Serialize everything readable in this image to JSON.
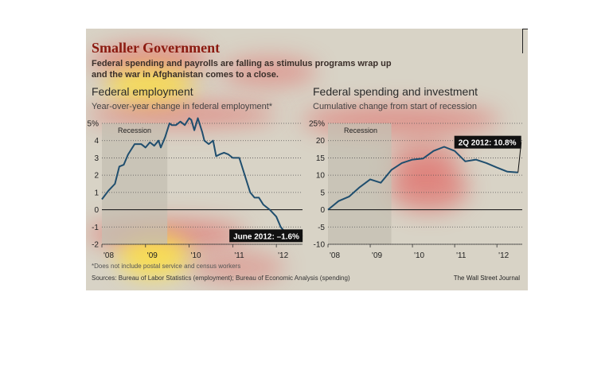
{
  "header": {
    "title": "Smaller Government",
    "subtitle": "Federal spending and payrolls are falling as stimulus programs wrap up and the war in Afghanistan comes to a close."
  },
  "footer": {
    "footnote": "*Does not include postal service and census workers",
    "sources": "Sources: Bureau of Labor Statistics (employment); Bureau of Economic Analysis (spending)",
    "credit": "The Wall Street Journal"
  },
  "colors": {
    "line": "#1f4e6e",
    "recession": "#c4bfb2",
    "background": "#d8d3c6",
    "title": "#8b1a10"
  },
  "chart_data": [
    {
      "type": "line",
      "title": "Federal employment",
      "subtitle": "Year-over-year change in federal employment*",
      "x_tick_labels": [
        "'08",
        "'09",
        "'10",
        "'11",
        "'12"
      ],
      "y_tick_labels": [
        "5%",
        "4",
        "3",
        "2",
        "1",
        "0",
        "-1",
        "-2"
      ],
      "ylim": [
        -2,
        5
      ],
      "xlim": [
        2008.0,
        2012.6
      ],
      "recession_label": "Recession",
      "recession": [
        2008.0,
        2009.5
      ],
      "annotation": "June 2012: –1.6%",
      "series": [
        {
          "x": [
            2008.0,
            2008.15,
            2008.3,
            2008.4,
            2008.5,
            2008.6,
            2008.75,
            2008.9,
            2009.0,
            2009.1,
            2009.2,
            2009.3,
            2009.35,
            2009.45,
            2009.55,
            2009.6,
            2009.7,
            2009.8,
            2009.9,
            2010.0,
            2010.05,
            2010.12,
            2010.2,
            2010.3,
            2010.35,
            2010.45,
            2010.55,
            2010.62,
            2010.7,
            2010.8,
            2010.9,
            2011.0,
            2011.15,
            2011.3,
            2011.4,
            2011.5,
            2011.6,
            2011.7,
            2011.85,
            2012.0,
            2012.1,
            2012.2,
            2012.3,
            2012.42
          ],
          "y": [
            0.6,
            1.1,
            1.5,
            2.5,
            2.6,
            3.2,
            3.8,
            3.8,
            3.6,
            3.9,
            3.7,
            4.0,
            3.6,
            4.2,
            5.0,
            4.9,
            4.9,
            5.1,
            4.9,
            5.3,
            5.2,
            4.6,
            5.3,
            4.5,
            4.0,
            3.8,
            4.0,
            3.1,
            3.2,
            3.3,
            3.2,
            3.0,
            3.0,
            1.8,
            1.0,
            0.7,
            0.7,
            0.3,
            0.0,
            -0.4,
            -1.0,
            -1.3,
            -1.4,
            -1.6
          ]
        }
      ]
    },
    {
      "type": "line",
      "title": "Federal spending and investment",
      "subtitle": "Cumulative change from start of recession",
      "x_tick_labels": [
        "'08",
        "'09",
        "'10",
        "'11",
        "'12"
      ],
      "y_tick_labels": [
        "25%",
        "20",
        "15",
        "10",
        "5",
        "0",
        "-5",
        "-10"
      ],
      "ylim": [
        -10,
        25
      ],
      "xlim": [
        2008.0,
        2012.6
      ],
      "recession_label": "Recession",
      "recession": [
        2008.0,
        2009.5
      ],
      "annotation": "2Q 2012: 10.8%",
      "series": [
        {
          "x": [
            2008.0,
            2008.25,
            2008.5,
            2008.75,
            2009.0,
            2009.25,
            2009.5,
            2009.75,
            2010.0,
            2010.25,
            2010.5,
            2010.75,
            2011.0,
            2011.25,
            2011.5,
            2011.75,
            2012.0,
            2012.25,
            2012.5
          ],
          "y": [
            0,
            2.5,
            3.8,
            6.5,
            8.8,
            7.8,
            11.5,
            13.5,
            14.5,
            14.8,
            17.0,
            18.2,
            17.0,
            14.0,
            14.5,
            13.5,
            12.2,
            11.0,
            10.8
          ]
        }
      ]
    }
  ]
}
